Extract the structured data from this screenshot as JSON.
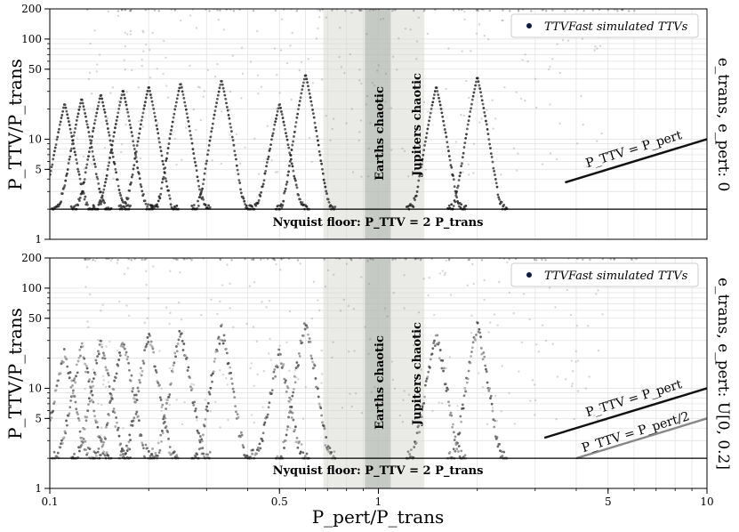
{
  "x_axis": {
    "label": "P_pert/P_trans",
    "ticks": [
      {
        "value": 0.1,
        "label": "0.1"
      },
      {
        "value": 0.5,
        "label": "0.5"
      },
      {
        "value": 1,
        "label": "1"
      },
      {
        "value": 5,
        "label": "5"
      },
      {
        "value": 10,
        "label": "10"
      }
    ]
  },
  "panels": [
    {
      "ylabel": "P_TTV/P_trans",
      "right_label": "e_trans, e_pert: 0",
      "legend": "TTVFast simulated TTVs",
      "regions": [
        {
          "label": "Earths chaotic",
          "x_min": 0.91,
          "x_max": 1.09
        },
        {
          "label": "Jupiters chaotic",
          "x_min": 0.68,
          "x_max": 1.38
        }
      ],
      "nyquist_label": "Nyquist floor: P_TTV = 2 P_trans",
      "reference_lines": [
        {
          "label": "P_TTV = P_pert",
          "x": [
            3.7,
            10.0
          ],
          "y": [
            3.7,
            10.0
          ]
        }
      ]
    },
    {
      "ylabel": "P_TTV/P_trans",
      "right_label": "e_trans, e_pert: U[0, 0.2]",
      "legend": "TTVFast simulated TTVs",
      "regions": [
        {
          "label": "Earths chaotic",
          "x_min": 0.91,
          "x_max": 1.09
        },
        {
          "label": "Jupiters chaotic",
          "x_min": 0.68,
          "x_max": 1.38
        }
      ],
      "nyquist_label": "Nyquist floor: P_TTV = 2 P_trans",
      "reference_lines": [
        {
          "label": "P_TTV = P_pert",
          "x": [
            3.2,
            10.0
          ],
          "y": [
            3.2,
            10.0
          ]
        },
        {
          "label": "P_TTV = P_pert/2",
          "x": [
            4.0,
            10.0
          ],
          "y": [
            2.0,
            5.0
          ]
        }
      ]
    }
  ],
  "chart_data": {
    "type": "scatter",
    "x_scale": "log",
    "y_scale": "log",
    "xlim": [
      0.1,
      10
    ],
    "ylim": [
      1,
      200
    ],
    "y_ticks": [
      1,
      5,
      10,
      50,
      100,
      200
    ],
    "nyquist_floor": 2,
    "resonances": [
      {
        "x": 0.111,
        "peak": 40
      },
      {
        "x": 0.125,
        "peak": 45
      },
      {
        "x": 0.143,
        "peak": 50
      },
      {
        "x": 0.167,
        "peak": 55
      },
      {
        "x": 0.2,
        "peak": 60
      },
      {
        "x": 0.25,
        "peak": 65
      },
      {
        "x": 0.333,
        "peak": 70
      },
      {
        "x": 0.5,
        "peak": 40
      },
      {
        "x": 0.6,
        "peak": 80
      },
      {
        "x": 1.5,
        "peak": 60
      },
      {
        "x": 2.0,
        "peak": 75
      }
    ],
    "series": [
      {
        "name": "TTVFast simulated TTVs",
        "panel": 0
      },
      {
        "name": "TTVFast simulated TTVs",
        "panel": 1
      }
    ]
  }
}
